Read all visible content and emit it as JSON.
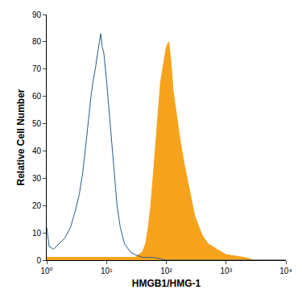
{
  "chart_data": {
    "type": "line",
    "x_label": "HMGB1/HMG-1",
    "y_label": "Relative Cell Number",
    "log": "x",
    "grid": false,
    "xlim": [
      1,
      10000
    ],
    "xticks": [
      {
        "value": 1,
        "label": "10⁰"
      },
      {
        "value": 10,
        "label": "10¹"
      },
      {
        "value": 100,
        "label": "10²"
      },
      {
        "value": 1000,
        "label": "10³"
      },
      {
        "value": 10000,
        "label": "10⁴"
      }
    ],
    "ylim": [
      0,
      90
    ],
    "yticks": [
      0,
      10,
      20,
      30,
      40,
      50,
      60,
      70,
      80,
      90
    ],
    "series": [
      {
        "type": "line",
        "color": "#2b5c86",
        "x": [
          1,
          1.1,
          1.3,
          1.6,
          2,
          2.5,
          3,
          3.5,
          4,
          4.5,
          5,
          5.5,
          6,
          6.5,
          7,
          7.5,
          8,
          8.5,
          9,
          10,
          11,
          12,
          13,
          14,
          15,
          17,
          20,
          25,
          30,
          40,
          60,
          100,
          1000,
          3000,
          10000
        ],
        "values": [
          12,
          5,
          4,
          6,
          8,
          12,
          18,
          24,
          32,
          42,
          52,
          60,
          66,
          70,
          75,
          80,
          83,
          78,
          76,
          66,
          55,
          45,
          35,
          27,
          20,
          12,
          6,
          3,
          2,
          1,
          1,
          0,
          0,
          0,
          0
        ]
      },
      {
        "type": "area",
        "color": "#f7a21b",
        "x": [
          1,
          10,
          20,
          30,
          40,
          45,
          50,
          55,
          60,
          65,
          70,
          75,
          80,
          90,
          100,
          110,
          120,
          130,
          150,
          170,
          200,
          250,
          300,
          400,
          500,
          700,
          1000,
          2000,
          3000,
          10000
        ],
        "values": [
          1,
          1,
          1,
          1,
          3,
          6,
          12,
          20,
          30,
          40,
          50,
          58,
          65,
          72,
          78,
          80,
          72,
          62,
          52,
          44,
          35,
          24,
          16,
          9,
          6,
          4,
          2,
          1,
          0,
          0
        ]
      }
    ]
  }
}
